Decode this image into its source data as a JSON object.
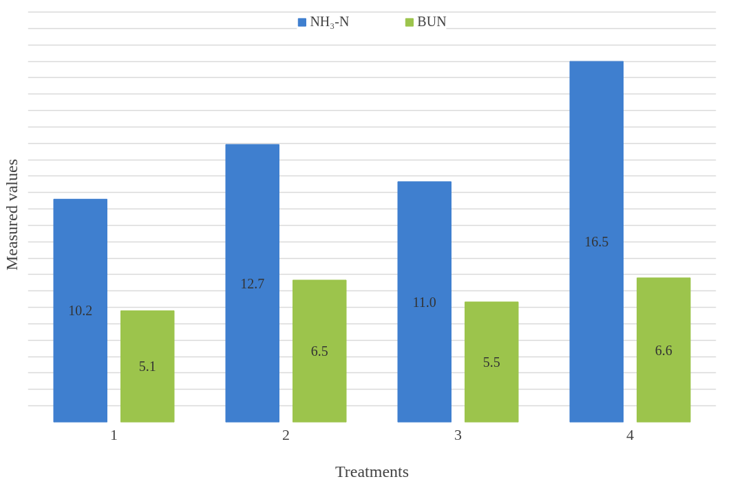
{
  "chart_data": {
    "type": "bar",
    "xlabel": "Treatments",
    "ylabel": "Measured values",
    "categories": [
      "1",
      "2",
      "3",
      "4"
    ],
    "series": [
      {
        "name": "NH₃-N",
        "color": "#3f7fcf",
        "values": [
          10.2,
          12.7,
          11.0,
          16.5
        ],
        "value_labels": [
          "10.2",
          "12.7",
          "11.0",
          "16.5"
        ]
      },
      {
        "name": "BUN",
        "color": "#9cc44c",
        "values": [
          5.1,
          6.5,
          5.5,
          6.6
        ],
        "value_labels": [
          "5.1",
          "6.5",
          "5.5",
          "6.6"
        ]
      }
    ],
    "tick_labels": "x",
    "grid": "y",
    "legend": "top"
  }
}
